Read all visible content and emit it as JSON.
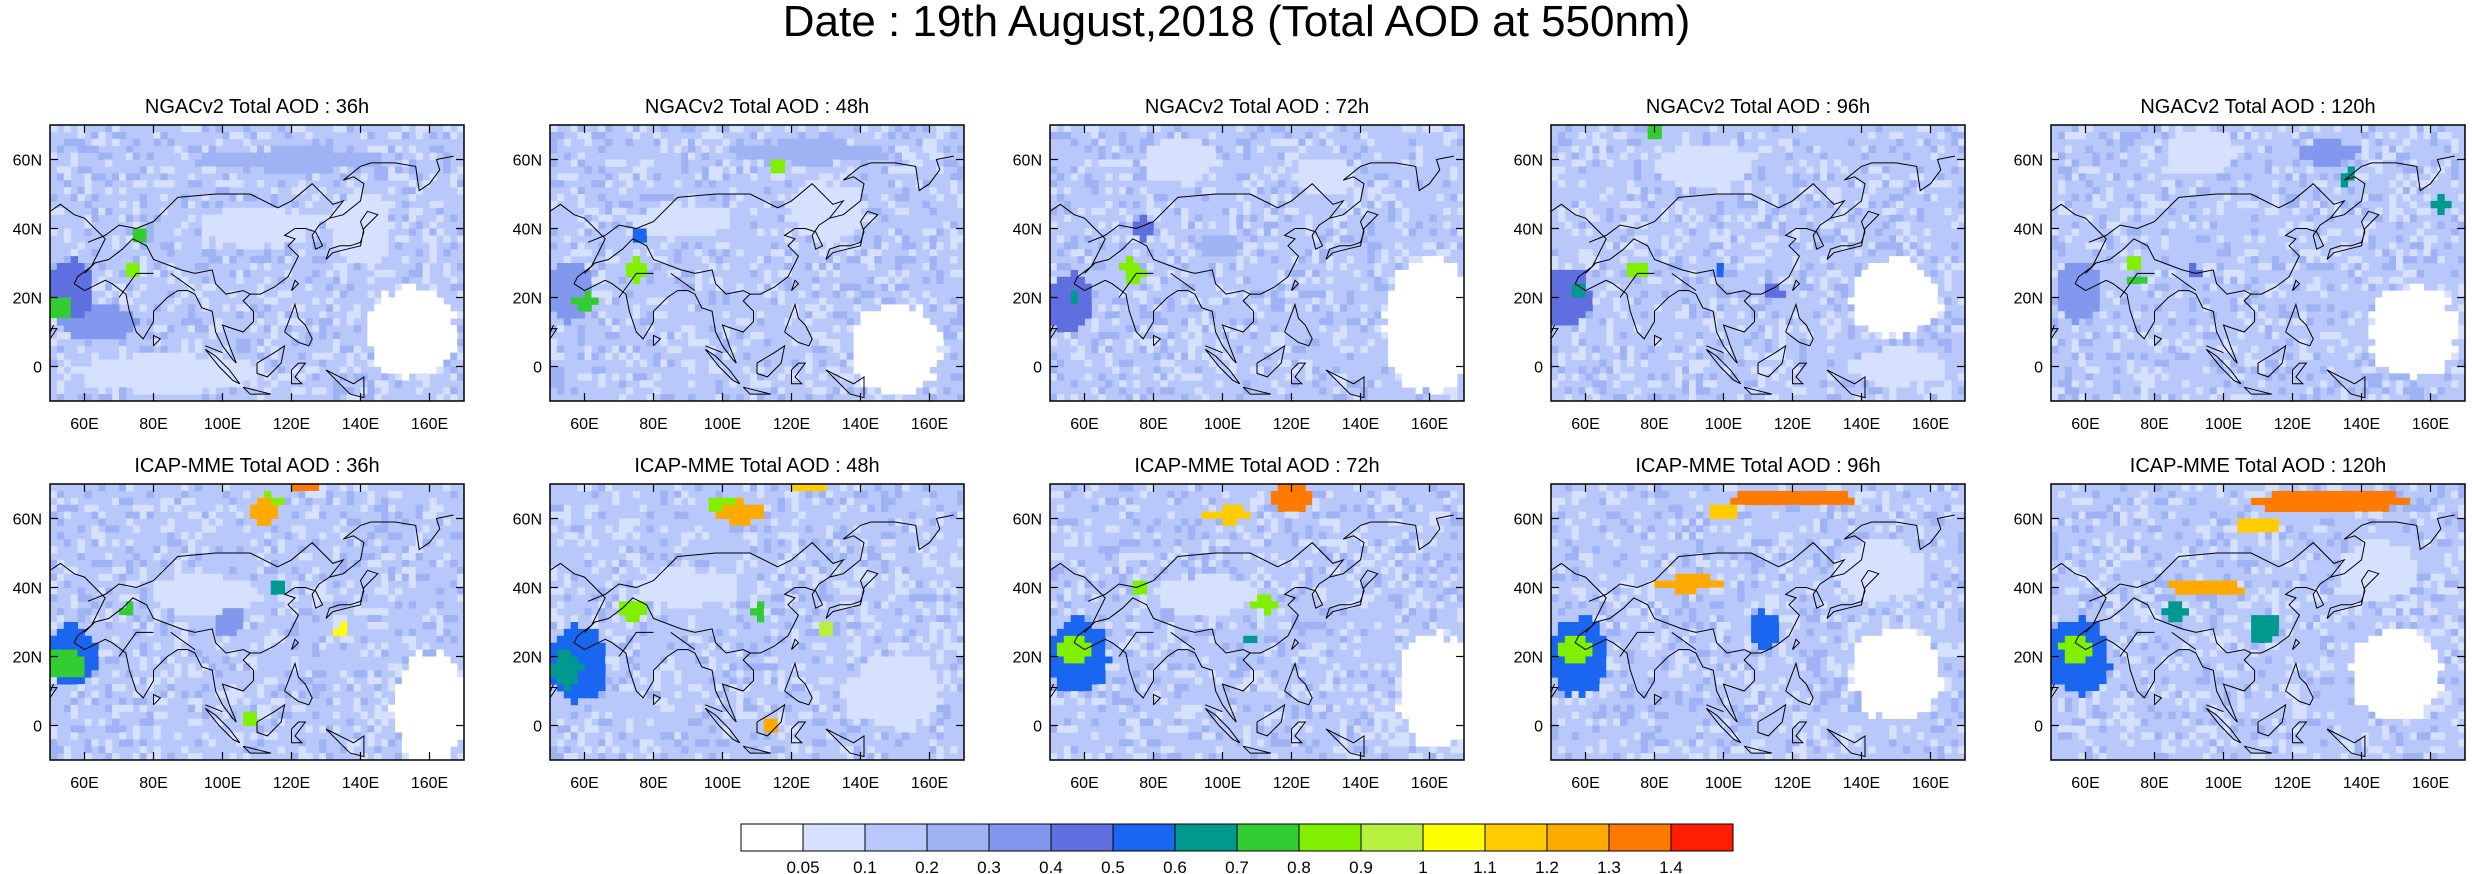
{
  "figure": {
    "title": "Date : 19th August,2018 (Total AOD at 550nm)"
  },
  "axes": {
    "lat_ticks": [
      "60N",
      "40N",
      "20N",
      "0"
    ],
    "lon_ticks": [
      "60E",
      "80E",
      "100E",
      "120E",
      "140E",
      "160E"
    ],
    "lat_range": [
      -10,
      70
    ],
    "lon_range": [
      50,
      170
    ]
  },
  "rows": [
    {
      "model": "NGACv2",
      "panels": [
        {
          "title": "NGACv2 Total AOD : 36h",
          "lead": "36h"
        },
        {
          "title": "NGACv2 Total AOD : 48h",
          "lead": "48h"
        },
        {
          "title": "NGACv2 Total AOD : 72h",
          "lead": "72h"
        },
        {
          "title": "NGACv2 Total AOD : 96h",
          "lead": "96h"
        },
        {
          "title": "NGACv2 Total AOD : 120h",
          "lead": "120h"
        }
      ]
    },
    {
      "model": "ICAP-MME",
      "panels": [
        {
          "title": "ICAP-MME Total AOD : 36h",
          "lead": "36h"
        },
        {
          "title": "ICAP-MME Total AOD : 48h",
          "lead": "48h"
        },
        {
          "title": "ICAP-MME Total AOD : 72h",
          "lead": "72h"
        },
        {
          "title": "ICAP-MME Total AOD : 96h",
          "lead": "96h"
        },
        {
          "title": "ICAP-MME Total AOD : 120h",
          "lead": "120h"
        }
      ]
    }
  ],
  "colorbar": {
    "labels": [
      "0.05",
      "0.1",
      "0.2",
      "0.3",
      "0.4",
      "0.5",
      "0.6",
      "0.7",
      "0.8",
      "0.9",
      "1",
      "1.1",
      "1.2",
      "1.3",
      "1.4"
    ],
    "colors": [
      "#ffffff",
      "#d6e0ff",
      "#b8c8fa",
      "#9fb2f4",
      "#8298ee",
      "#5f6fe0",
      "#1a66f0",
      "#00998f",
      "#33cc33",
      "#80f000",
      "#b8f040",
      "#ffff00",
      "#ffcc00",
      "#ffaa00",
      "#ff7a00",
      "#ff1e00"
    ]
  },
  "chart_data": [
    {
      "type": "heatmap",
      "title": "NGACv2 Total AOD : 36h",
      "xlabel": "",
      "ylabel": "",
      "x_ticks": [
        "60E",
        "80E",
        "100E",
        "120E",
        "140E",
        "160E"
      ],
      "y_ticks": [
        "60N",
        "40N",
        "20N",
        "0"
      ],
      "xlim": [
        50,
        170
      ],
      "ylim": [
        -10,
        70
      ],
      "background_level": 2,
      "features": [
        {
          "lon": 56,
          "lat": 22,
          "level": 5,
          "rlon": 6,
          "rlat": 8
        },
        {
          "lon": 53,
          "lat": 17,
          "level": 8,
          "rlon": 3,
          "rlat": 3
        },
        {
          "lon": 76,
          "lat": 37,
          "level": 8,
          "rlon": 2,
          "rlat": 2
        },
        {
          "lon": 74,
          "lat": 28,
          "level": 9,
          "rlon": 2,
          "rlat": 2
        },
        {
          "lon": 120,
          "lat": 60,
          "level": 3,
          "rlon": 25,
          "rlat": 3
        },
        {
          "lon": 64,
          "lat": 13,
          "level": 4,
          "rlon": 10,
          "rlat": 5
        },
        {
          "lon": 155,
          "lat": 10,
          "level": 0,
          "rlon": 12,
          "rlat": 12
        },
        {
          "lon": 140,
          "lat": 40,
          "level": 1,
          "rlon": 8,
          "rlat": 10
        },
        {
          "lon": 85,
          "lat": -2,
          "level": 1,
          "rlon": 25,
          "rlat": 5
        },
        {
          "lon": 110,
          "lat": 40,
          "level": 1,
          "rlon": 15,
          "rlat": 5
        }
      ]
    },
    {
      "type": "heatmap",
      "title": "NGACv2 Total AOD : 48h",
      "xlabel": "",
      "ylabel": "",
      "x_ticks": [
        "60E",
        "80E",
        "100E",
        "120E",
        "140E",
        "160E"
      ],
      "y_ticks": [
        "60N",
        "40N",
        "20N",
        "0"
      ],
      "xlim": [
        50,
        170
      ],
      "ylim": [
        -10,
        70
      ],
      "background_level": 2,
      "features": [
        {
          "lon": 56,
          "lat": 22,
          "level": 4,
          "rlon": 6,
          "rlat": 8
        },
        {
          "lon": 60,
          "lat": 19,
          "level": 8,
          "rlon": 3,
          "rlat": 2
        },
        {
          "lon": 76,
          "lat": 38,
          "level": 6,
          "rlon": 2,
          "rlat": 2
        },
        {
          "lon": 75,
          "lat": 28,
          "level": 9,
          "rlon": 3,
          "rlat": 3
        },
        {
          "lon": 116,
          "lat": 58,
          "level": 9,
          "rlon": 3,
          "rlat": 1.5
        },
        {
          "lon": 125,
          "lat": 62,
          "level": 3,
          "rlon": 22,
          "rlat": 3
        },
        {
          "lon": 150,
          "lat": 5,
          "level": 0,
          "rlon": 12,
          "rlat": 12
        },
        {
          "lon": 130,
          "lat": 45,
          "level": 1,
          "rlon": 10,
          "rlat": 8
        },
        {
          "lon": 88,
          "lat": 42,
          "level": 1,
          "rlon": 14,
          "rlat": 4
        }
      ]
    },
    {
      "type": "heatmap",
      "title": "NGACv2 Total AOD : 72h",
      "xlabel": "",
      "ylabel": "",
      "x_ticks": [
        "60E",
        "80E",
        "100E",
        "120E",
        "140E",
        "160E"
      ],
      "y_ticks": [
        "60N",
        "40N",
        "20N",
        "0"
      ],
      "xlim": [
        50,
        170
      ],
      "ylim": [
        -10,
        70
      ],
      "background_level": 2,
      "features": [
        {
          "lon": 56,
          "lat": 18,
          "level": 5,
          "rlon": 6,
          "rlat": 8
        },
        {
          "lon": 57,
          "lat": 20,
          "level": 7,
          "rlon": 2,
          "rlat": 2
        },
        {
          "lon": 74,
          "lat": 28,
          "level": 9,
          "rlon": 3,
          "rlat": 3
        },
        {
          "lon": 77,
          "lat": 40,
          "level": 5,
          "rlon": 3,
          "rlat": 3
        },
        {
          "lon": 100,
          "lat": 35,
          "level": 3,
          "rlon": 6,
          "rlat": 3
        },
        {
          "lon": 160,
          "lat": 12,
          "level": 0,
          "rlon": 12,
          "rlat": 18
        },
        {
          "lon": 88,
          "lat": 60,
          "level": 1,
          "rlon": 10,
          "rlat": 6
        },
        {
          "lon": 130,
          "lat": 55,
          "level": 1,
          "rlon": 8,
          "rlat": 5
        }
      ]
    },
    {
      "type": "heatmap",
      "title": "NGACv2 Total AOD : 96h",
      "xlabel": "",
      "ylabel": "",
      "x_ticks": [
        "60E",
        "80E",
        "100E",
        "120E",
        "140E",
        "160E"
      ],
      "y_ticks": [
        "60N",
        "40N",
        "20N",
        "0"
      ],
      "xlim": [
        50,
        170
      ],
      "ylim": [
        -10,
        70
      ],
      "background_level": 2,
      "features": [
        {
          "lon": 55,
          "lat": 20,
          "level": 5,
          "rlon": 6,
          "rlat": 8
        },
        {
          "lon": 58,
          "lat": 22,
          "level": 7,
          "rlon": 2,
          "rlat": 2
        },
        {
          "lon": 75,
          "lat": 28,
          "level": 9,
          "rlon": 3,
          "rlat": 2.5
        },
        {
          "lon": 80,
          "lat": 68,
          "level": 8,
          "rlon": 3,
          "rlat": 1.5
        },
        {
          "lon": 99,
          "lat": 28,
          "level": 6,
          "rlon": 2,
          "rlat": 2
        },
        {
          "lon": 115,
          "lat": 22,
          "level": 5,
          "rlon": 2,
          "rlat": 2
        },
        {
          "lon": 150,
          "lat": 20,
          "level": 0,
          "rlon": 12,
          "rlat": 10
        },
        {
          "lon": 150,
          "lat": 0,
          "level": 1,
          "rlon": 12,
          "rlat": 5
        },
        {
          "lon": 95,
          "lat": 58,
          "level": 1,
          "rlon": 12,
          "rlat": 6
        }
      ]
    },
    {
      "type": "heatmap",
      "title": "NGACv2 Total AOD : 120h",
      "xlabel": "",
      "ylabel": "",
      "x_ticks": [
        "60E",
        "80E",
        "100E",
        "120E",
        "140E",
        "160E"
      ],
      "y_ticks": [
        "60N",
        "40N",
        "20N",
        "0"
      ],
      "xlim": [
        50,
        170
      ],
      "ylim": [
        -10,
        70
      ],
      "background_level": 2,
      "features": [
        {
          "lon": 58,
          "lat": 22,
          "level": 4,
          "rlon": 6,
          "rlat": 8
        },
        {
          "lon": 74,
          "lat": 30,
          "level": 9,
          "rlon": 2.5,
          "rlat": 2
        },
        {
          "lon": 75,
          "lat": 25,
          "level": 8,
          "rlon": 2,
          "rlat": 1.5
        },
        {
          "lon": 91,
          "lat": 28,
          "level": 5,
          "rlon": 2,
          "rlat": 2
        },
        {
          "lon": 136,
          "lat": 55,
          "level": 7,
          "rlon": 2,
          "rlat": 2
        },
        {
          "lon": 163,
          "lat": 47,
          "level": 7,
          "rlon": 2,
          "rlat": 2
        },
        {
          "lon": 155,
          "lat": 10,
          "level": 0,
          "rlon": 12,
          "rlat": 12
        },
        {
          "lon": 130,
          "lat": 62,
          "level": 4,
          "rlon": 8,
          "rlat": 3
        },
        {
          "lon": 94,
          "lat": 62,
          "level": 1,
          "rlon": 10,
          "rlat": 6
        }
      ]
    },
    {
      "type": "heatmap",
      "title": "ICAP-MME Total AOD : 36h",
      "xlabel": "",
      "ylabel": "",
      "x_ticks": [
        "60E",
        "80E",
        "100E",
        "120E",
        "140E",
        "160E"
      ],
      "y_ticks": [
        "60N",
        "40N",
        "20N",
        "0"
      ],
      "xlim": [
        50,
        170
      ],
      "ylim": [
        -10,
        70
      ],
      "background_level": 2,
      "features": [
        {
          "lon": 56,
          "lat": 20,
          "level": 6,
          "rlon": 7,
          "rlat": 8
        },
        {
          "lon": 55,
          "lat": 18,
          "level": 8,
          "rlon": 5,
          "rlat": 4
        },
        {
          "lon": 112,
          "lat": 62,
          "level": 13,
          "rlon": 4,
          "rlat": 3
        },
        {
          "lon": 114,
          "lat": 65,
          "level": 9,
          "rlon": 3,
          "rlat": 2
        },
        {
          "lon": 124,
          "lat": 69,
          "level": 14,
          "rlon": 3,
          "rlat": 1.5
        },
        {
          "lon": 116,
          "lat": 39,
          "level": 7,
          "rlon": 2,
          "rlat": 2
        },
        {
          "lon": 72,
          "lat": 33,
          "level": 8,
          "rlon": 2,
          "rlat": 2
        },
        {
          "lon": 134,
          "lat": 27,
          "level": 11,
          "rlon": 2,
          "rlat": 2
        },
        {
          "lon": 102,
          "lat": 30,
          "level": 4,
          "rlon": 4,
          "rlat": 4
        },
        {
          "lon": 108,
          "lat": 1,
          "level": 9,
          "rlon": 2,
          "rlat": 2
        },
        {
          "lon": 160,
          "lat": 5,
          "level": 0,
          "rlon": 10,
          "rlat": 15
        },
        {
          "lon": 95,
          "lat": 38,
          "level": 1,
          "rlon": 15,
          "rlat": 5
        }
      ]
    },
    {
      "type": "heatmap",
      "title": "ICAP-MME Total AOD : 48h",
      "xlabel": "",
      "ylabel": "",
      "x_ticks": [
        "60E",
        "80E",
        "100E",
        "120E",
        "140E",
        "160E"
      ],
      "y_ticks": [
        "60N",
        "40N",
        "20N",
        "0"
      ],
      "xlim": [
        50,
        170
      ],
      "ylim": [
        -10,
        70
      ],
      "background_level": 2,
      "features": [
        {
          "lon": 58,
          "lat": 18,
          "level": 6,
          "rlon": 8,
          "rlat": 10
        },
        {
          "lon": 55,
          "lat": 16,
          "level": 7,
          "rlon": 4,
          "rlat": 5
        },
        {
          "lon": 105,
          "lat": 62,
          "level": 13,
          "rlon": 6,
          "rlat": 3
        },
        {
          "lon": 100,
          "lat": 64,
          "level": 9,
          "rlon": 4,
          "rlat": 2
        },
        {
          "lon": 125,
          "lat": 69,
          "level": 12,
          "rlon": 5,
          "rlat": 1.5
        },
        {
          "lon": 74,
          "lat": 34,
          "level": 9,
          "rlon": 3,
          "rlat": 3
        },
        {
          "lon": 110,
          "lat": 33,
          "level": 8,
          "rlon": 2,
          "rlat": 2
        },
        {
          "lon": 130,
          "lat": 28,
          "level": 10,
          "rlon": 2,
          "rlat": 2
        },
        {
          "lon": 114,
          "lat": 0,
          "level": 13,
          "rlon": 2,
          "rlat": 2
        },
        {
          "lon": 150,
          "lat": 10,
          "level": 1,
          "rlon": 12,
          "rlat": 10
        },
        {
          "lon": 90,
          "lat": 40,
          "level": 1,
          "rlon": 14,
          "rlat": 5
        }
      ]
    },
    {
      "type": "heatmap",
      "title": "ICAP-MME Total AOD : 72h",
      "xlabel": "",
      "ylabel": "",
      "x_ticks": [
        "60E",
        "80E",
        "100E",
        "120E",
        "140E",
        "160E"
      ],
      "y_ticks": [
        "60N",
        "40N",
        "20N",
        "0"
      ],
      "xlim": [
        50,
        170
      ],
      "ylim": [
        -10,
        70
      ],
      "background_level": 2,
      "features": [
        {
          "lon": 58,
          "lat": 20,
          "level": 6,
          "rlon": 8,
          "rlat": 10
        },
        {
          "lon": 57,
          "lat": 22,
          "level": 9,
          "rlon": 4,
          "rlat": 4
        },
        {
          "lon": 120,
          "lat": 66,
          "level": 14,
          "rlon": 6,
          "rlat": 4
        },
        {
          "lon": 102,
          "lat": 61,
          "level": 12,
          "rlon": 6,
          "rlat": 2
        },
        {
          "lon": 76,
          "lat": 40,
          "level": 9,
          "rlon": 2,
          "rlat": 2
        },
        {
          "lon": 112,
          "lat": 35,
          "level": 9,
          "rlon": 3,
          "rlat": 2
        },
        {
          "lon": 108,
          "lat": 25,
          "level": 7,
          "rlon": 2,
          "rlat": 2
        },
        {
          "lon": 162,
          "lat": 10,
          "level": 0,
          "rlon": 10,
          "rlat": 15
        },
        {
          "lon": 95,
          "lat": 38,
          "level": 1,
          "rlon": 14,
          "rlat": 5
        }
      ]
    },
    {
      "type": "heatmap",
      "title": "ICAP-MME Total AOD : 96h",
      "xlabel": "",
      "ylabel": "",
      "x_ticks": [
        "60E",
        "80E",
        "100E",
        "120E",
        "140E",
        "160E"
      ],
      "y_ticks": [
        "60N",
        "40N",
        "20N",
        "0"
      ],
      "xlim": [
        50,
        170
      ],
      "ylim": [
        -10,
        70
      ],
      "background_level": 2,
      "features": [
        {
          "lon": 58,
          "lat": 20,
          "level": 6,
          "rlon": 8,
          "rlat": 10
        },
        {
          "lon": 57,
          "lat": 22,
          "level": 9,
          "rlon": 4,
          "rlat": 4
        },
        {
          "lon": 120,
          "lat": 66,
          "level": 14,
          "rlon": 16,
          "rlat": 2.5
        },
        {
          "lon": 100,
          "lat": 62,
          "level": 12,
          "rlon": 5,
          "rlat": 2
        },
        {
          "lon": 90,
          "lat": 41,
          "level": 13,
          "rlon": 9,
          "rlat": 2
        },
        {
          "lon": 112,
          "lat": 28,
          "level": 6,
          "rlon": 4,
          "rlat": 5
        },
        {
          "lon": 150,
          "lat": 15,
          "level": 0,
          "rlon": 12,
          "rlat": 12
        },
        {
          "lon": 145,
          "lat": 45,
          "level": 1,
          "rlon": 12,
          "rlat": 8
        }
      ]
    },
    {
      "type": "heatmap",
      "title": "ICAP-MME Total AOD : 120h",
      "xlabel": "",
      "ylabel": "",
      "x_ticks": [
        "60E",
        "80E",
        "100E",
        "120E",
        "140E",
        "160E"
      ],
      "y_ticks": [
        "60N",
        "40N",
        "20N",
        "0"
      ],
      "xlim": [
        50,
        170
      ],
      "ylim": [
        -10,
        70
      ],
      "background_level": 2,
      "features": [
        {
          "lon": 58,
          "lat": 20,
          "level": 6,
          "rlon": 8,
          "rlat": 10
        },
        {
          "lon": 57,
          "lat": 22,
          "level": 9,
          "rlon": 4,
          "rlat": 4
        },
        {
          "lon": 130,
          "lat": 65,
          "level": 14,
          "rlon": 20,
          "rlat": 3
        },
        {
          "lon": 110,
          "lat": 58,
          "level": 12,
          "rlon": 6,
          "rlat": 2
        },
        {
          "lon": 95,
          "lat": 40,
          "level": 13,
          "rlon": 10,
          "rlat": 2
        },
        {
          "lon": 86,
          "lat": 33,
          "level": 7,
          "rlon": 3,
          "rlat": 2
        },
        {
          "lon": 112,
          "lat": 28,
          "level": 7,
          "rlon": 4,
          "rlat": 4
        },
        {
          "lon": 150,
          "lat": 15,
          "level": 0,
          "rlon": 12,
          "rlat": 12
        },
        {
          "lon": 145,
          "lat": 45,
          "level": 1,
          "rlon": 10,
          "rlat": 8
        }
      ]
    }
  ]
}
